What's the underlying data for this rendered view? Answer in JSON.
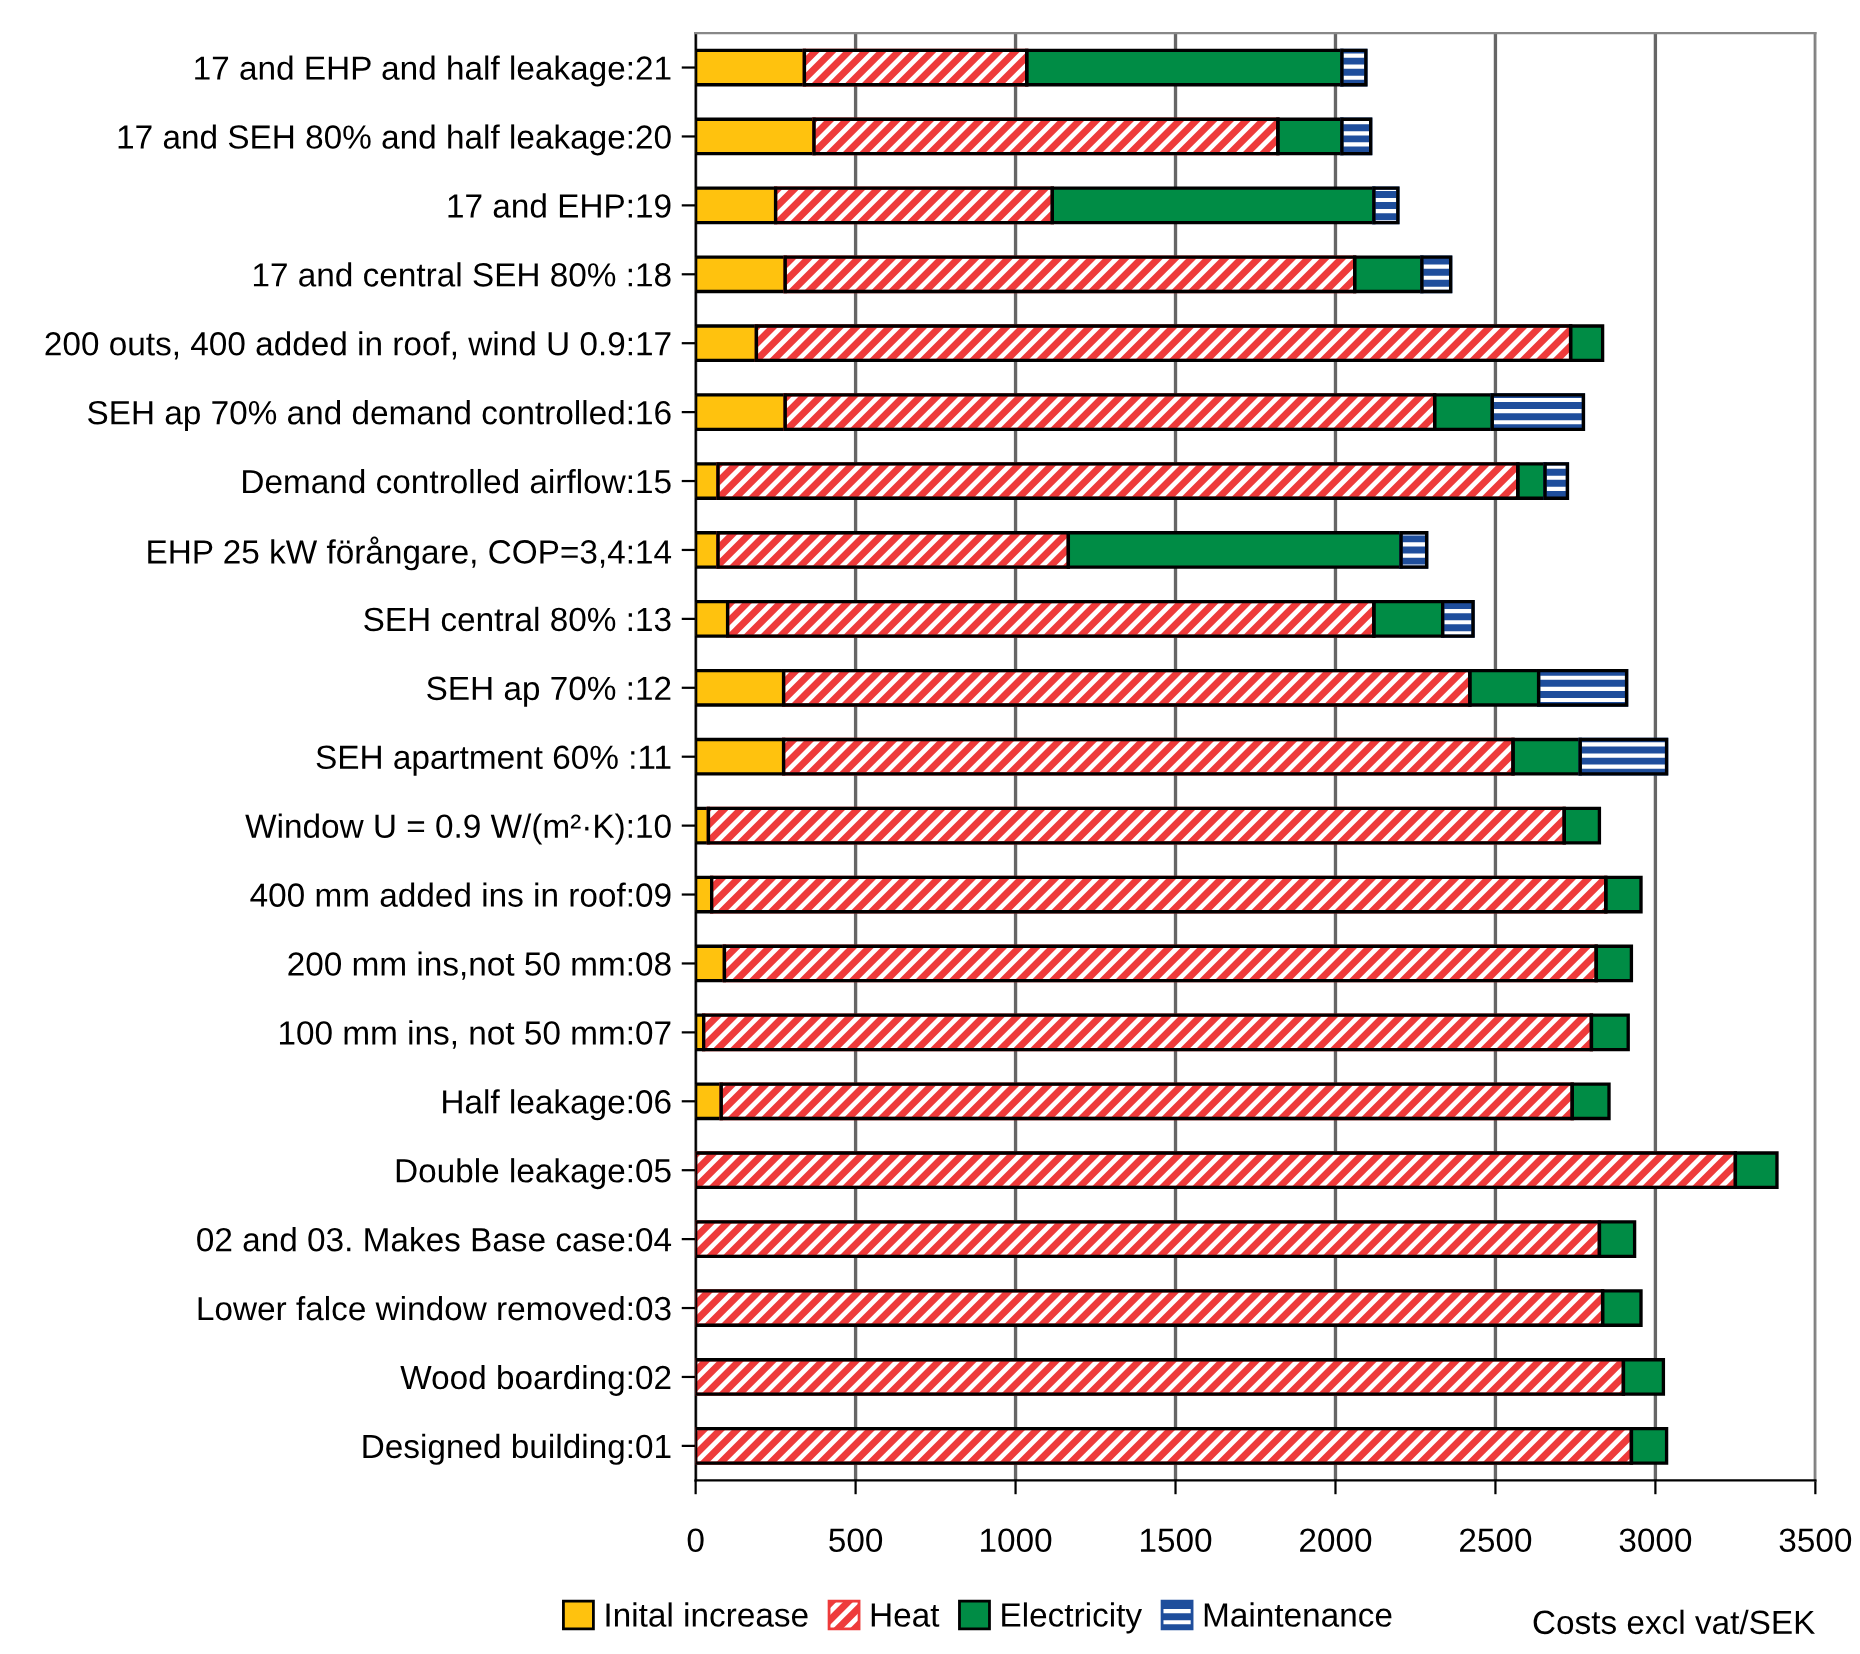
{
  "chart_data": {
    "type": "bar",
    "orientation": "horizontal",
    "stacked": true,
    "xlabel": "Costs excl vat/SEK",
    "categories": [
      "17 and EHP and half leakage:21",
      "17 and SEH 80% and half leakage:20",
      "17 and EHP:19",
      "17 and central SEH 80% :18",
      "200 outs, 400 added in roof, wind U 0.9:17",
      "SEH ap 70% and demand controlled:16",
      "Demand controlled airflow:15",
      "EHP 25 kW förångare, COP=3,4:14",
      "SEH central 80% :13",
      "SEH ap 70% :12",
      "SEH apartment 60% :11",
      "Window U = 0.9 W/(m²·K):10",
      "400 mm added ins in roof:09",
      "200 mm ins,not 50 mm:08",
      "100 mm ins, not 50 mm:07",
      "Half leakage:06",
      "Double leakage:05",
      "02 and 03. Makes Base case:04",
      "Lower falce window removed:03",
      "Wood boarding:02",
      "Designed building:01"
    ],
    "series": [
      {
        "name": "Inital increase",
        "color": "#ffc20e",
        "values": [
          340,
          370,
          250,
          280,
          190,
          280,
          70,
          70,
          100,
          275,
          275,
          40,
          50,
          90,
          25,
          80,
          null,
          null,
          null,
          null,
          null
        ]
      },
      {
        "name": "Heat",
        "color": "#ee3b3b",
        "values": [
          695,
          1450,
          865,
          1780,
          2545,
          2030,
          2500,
          1095,
          2020,
          2145,
          2280,
          2675,
          2795,
          2725,
          2775,
          2660,
          3250,
          2825,
          2835,
          2900,
          2925
        ]
      },
      {
        "name": "Electricity",
        "color": "#008c45",
        "values": [
          985,
          200,
          1005,
          210,
          100,
          180,
          85,
          1040,
          215,
          215,
          210,
          110,
          110,
          110,
          115,
          115,
          130,
          110,
          120,
          125,
          110
        ]
      },
      {
        "name": "Maintenance",
        "color": "#1f4e9c",
        "values": [
          75,
          90,
          75,
          90,
          null,
          285,
          70,
          80,
          95,
          275,
          270,
          null,
          null,
          null,
          null,
          null,
          null,
          null,
          null,
          null,
          null
        ]
      }
    ],
    "xlim": [
      0,
      3500
    ],
    "xticks": [
      0,
      500,
      1000,
      1500,
      2000,
      2500,
      3000,
      3500
    ],
    "grid": "x",
    "legend": "bottom"
  }
}
